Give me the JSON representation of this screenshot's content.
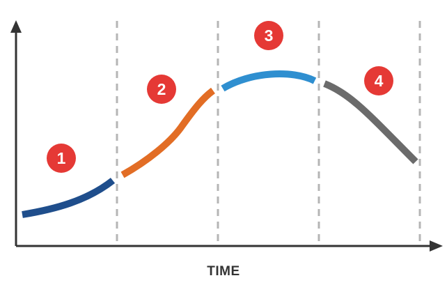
{
  "x_axis": {
    "label": "TIME"
  },
  "stages": [
    {
      "number": "1",
      "color": "#1f4e8c"
    },
    {
      "number": "2",
      "color": "#e26d25"
    },
    {
      "number": "3",
      "color": "#2f8fd0"
    },
    {
      "number": "4",
      "color": "#6b6b6b"
    }
  ],
  "colors": {
    "axis": "#333333",
    "divider": "#b5b5b5",
    "badge": "#e53935",
    "badge_text": "#ffffff"
  }
}
